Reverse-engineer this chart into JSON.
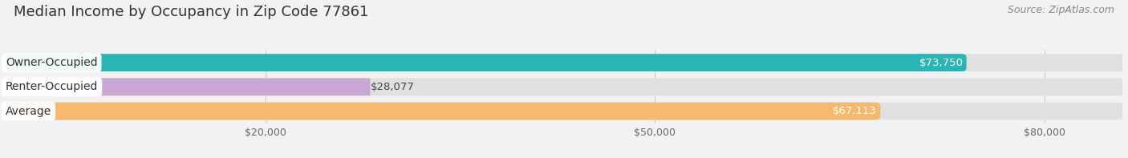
{
  "title": "Median Income by Occupancy in Zip Code 77861",
  "source": "Source: ZipAtlas.com",
  "categories": [
    "Owner-Occupied",
    "Renter-Occupied",
    "Average"
  ],
  "values": [
    73750,
    28077,
    67113
  ],
  "bar_colors": [
    "#29b5b5",
    "#c8a8d2",
    "#f5b96e"
  ],
  "value_labels": [
    "$73,750",
    "$28,077",
    "$67,113"
  ],
  "x_ticks": [
    20000,
    50000,
    80000
  ],
  "x_tick_labels": [
    "$20,000",
    "$50,000",
    "$80,000"
  ],
  "xlim_max": 86000,
  "bar_height": 0.72,
  "background_color": "#f2f2f2",
  "bar_bg_color": "#e0e0e0",
  "title_fontsize": 13,
  "source_fontsize": 9,
  "label_fontsize": 10,
  "value_fontsize": 9.5,
  "tick_fontsize": 9
}
